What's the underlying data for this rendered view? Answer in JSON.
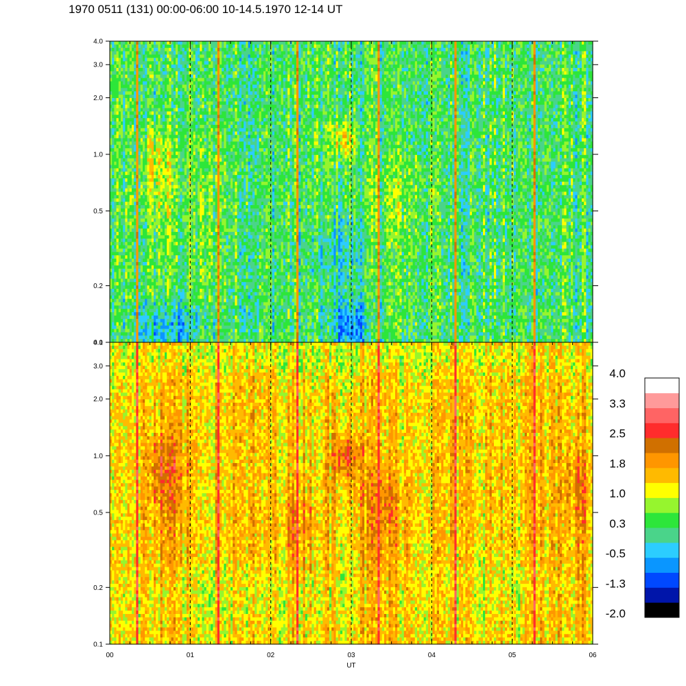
{
  "chart_data": {
    "type": "heatmap",
    "title": "1970 0511 (131) 00:00-06:00 10-14.5.1970  12-14 UT",
    "xlabel": "UT",
    "x_range": [
      0,
      6
    ],
    "x_tick_labels": [
      "00",
      "01",
      "02",
      "03",
      "04",
      "05",
      "06"
    ],
    "x_minor_ticks_per_hour": 4,
    "dashed_hour_lines": [
      1,
      2,
      3,
      4,
      5
    ],
    "panels": [
      {
        "name": "upper",
        "y_scale": "log",
        "ylim": [
          0.1,
          4.0
        ],
        "y_ticks": [
          0.1,
          0.2,
          0.5,
          1.0,
          2.0,
          3.0,
          4.0
        ],
        "y_tick_labels": [
          "0.1",
          "0.2",
          "0.5",
          "1.0",
          "2.0",
          "3.0",
          "4.0"
        ],
        "base_level": 0.3,
        "blobs": [
          {
            "x": 0.6,
            "y": 0.9,
            "sx": 0.15,
            "sy": 0.35,
            "a": 0.8
          },
          {
            "x": 2.9,
            "y": 1.25,
            "sx": 0.12,
            "sy": 0.2,
            "a": 1.1
          },
          {
            "x": 3.6,
            "y": 0.6,
            "sx": 0.25,
            "sy": 0.3,
            "a": 0.4
          },
          {
            "x": 1.2,
            "y": 0.7,
            "sx": 0.3,
            "sy": 0.4,
            "a": 0.3
          },
          {
            "x": 3.0,
            "y": 0.12,
            "sx": 0.18,
            "sy": 0.03,
            "a": -1.0
          },
          {
            "x": 0.75,
            "y": 0.12,
            "sx": 0.35,
            "sy": 0.03,
            "a": -0.8
          },
          {
            "x": 2.85,
            "y": 0.3,
            "sx": 0.3,
            "sy": 0.1,
            "a": -0.4
          }
        ],
        "spikes": [
          0.35,
          1.35,
          2.33,
          3.33,
          4.3,
          5.28
        ],
        "spike_level": 2.0
      },
      {
        "name": "lower",
        "y_scale": "log",
        "ylim": [
          0.1,
          4.0
        ],
        "y_ticks": [
          0.1,
          0.2,
          0.5,
          1.0,
          2.0,
          3.0,
          4.0
        ],
        "y_tick_labels": [
          "0.1",
          "0.2",
          "0.5",
          "1.0",
          "2.0",
          "3.0",
          "4.0"
        ],
        "base_level": 1.5,
        "blobs": [
          {
            "x": 0.7,
            "y": 0.85,
            "sx": 0.15,
            "sy": 0.3,
            "a": 0.8
          },
          {
            "x": 2.95,
            "y": 1.0,
            "sx": 0.12,
            "sy": 0.2,
            "a": 1.2
          },
          {
            "x": 3.4,
            "y": 0.55,
            "sx": 0.2,
            "sy": 0.2,
            "a": 0.6
          },
          {
            "x": 2.35,
            "y": 0.45,
            "sx": 0.15,
            "sy": 0.15,
            "a": 0.6
          },
          {
            "x": 5.8,
            "y": 0.7,
            "sx": 0.12,
            "sy": 0.3,
            "a": 0.6
          },
          {
            "x": 1.5,
            "y": 0.18,
            "sx": 0.8,
            "sy": 0.06,
            "a": -0.4
          },
          {
            "x": 4.8,
            "y": 0.2,
            "sx": 0.6,
            "sy": 0.07,
            "a": -0.3
          },
          {
            "x": 3.0,
            "y": 3.3,
            "sx": 3.0,
            "sy": 0.5,
            "a": -0.4
          }
        ],
        "spikes": [
          0.35,
          1.35,
          2.33,
          3.33,
          4.3,
          5.28
        ],
        "spike_level": 2.8
      }
    ],
    "colorbar": {
      "range": [
        -2.0,
        4.0
      ],
      "labels": [
        "4.0",
        "3.3",
        "2.5",
        "1.8",
        "1.0",
        "0.3",
        "-0.5",
        "-1.3",
        "-2.0"
      ],
      "colors": [
        "#000000",
        "#0015aa",
        "#0048ff",
        "#0a96ff",
        "#2ccdff",
        "#4ad48a",
        "#2de63a",
        "#96f52e",
        "#ffff00",
        "#ffba00",
        "#ff9600",
        "#d07000",
        "#ff2c2c",
        "#ff6464",
        "#ff9a9a",
        "#ffffff"
      ]
    }
  }
}
